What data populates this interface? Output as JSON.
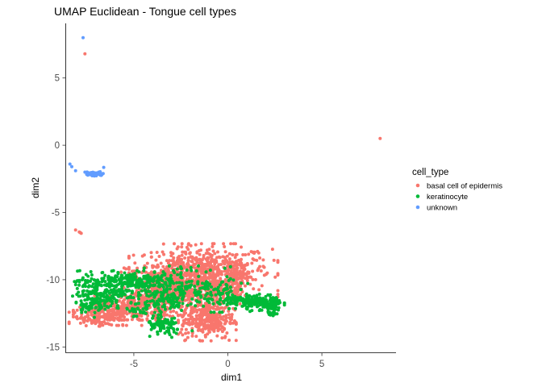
{
  "chart_data": {
    "type": "scatter",
    "title": "UMAP Euclidean  - Tongue cell types",
    "xlabel": "dim1",
    "ylabel": "dim2",
    "xlim": [
      -8.6,
      8.9
    ],
    "ylim": [
      -15.4,
      9.0
    ],
    "x_ticks": [
      -5,
      0,
      5
    ],
    "y_ticks": [
      -15,
      -10,
      -5,
      0,
      5
    ],
    "grid": false,
    "legend": {
      "title": "cell_type",
      "position": "right",
      "entries": [
        "basal cell of epidermis",
        "keratinocyte",
        "unknown"
      ]
    },
    "series": [
      {
        "name": "basal cell of epidermis",
        "color": "#F8766D",
        "outliers": [
          [
            -7.6,
            6.8
          ],
          [
            8.1,
            0.5
          ],
          [
            -8.1,
            -6.3
          ],
          [
            -7.9,
            -6.45
          ],
          [
            -7.8,
            -6.55
          ],
          [
            -7.85,
            -6.5
          ]
        ],
        "clusters": [
          {
            "cx": -1.3,
            "cy": -9.3,
            "sx": 1.8,
            "sy": 0.9,
            "n": 550
          },
          {
            "cx": -2.6,
            "cy": -10.3,
            "sx": 1.4,
            "sy": 0.8,
            "n": 380
          },
          {
            "cx": -4.0,
            "cy": -11.9,
            "sx": 1.2,
            "sy": 0.5,
            "n": 230
          },
          {
            "cx": -5.8,
            "cy": -12.3,
            "sx": 1.1,
            "sy": 0.5,
            "n": 220
          },
          {
            "cx": -6.9,
            "cy": -12.8,
            "sx": 0.7,
            "sy": 0.3,
            "n": 100
          },
          {
            "cx": -1.1,
            "cy": -13.0,
            "sx": 0.7,
            "sy": 0.7,
            "n": 320
          },
          {
            "cx": -0.4,
            "cy": -10.6,
            "sx": 0.6,
            "sy": 0.7,
            "n": 140
          },
          {
            "cx": 0.35,
            "cy": -9.8,
            "sx": 0.4,
            "sy": 0.5,
            "n": 60
          },
          {
            "cx": -3.3,
            "cy": -10.9,
            "sx": 0.9,
            "sy": 0.4,
            "n": 110
          }
        ]
      },
      {
        "name": "keratinocyte",
        "color": "#00BA38",
        "outliers": [
          [
            -1.9,
            -13.8
          ],
          [
            -7.1,
            -12.8
          ],
          [
            -7.2,
            -11.4
          ]
        ],
        "clusters": [
          {
            "cx": -5.3,
            "cy": -10.1,
            "sx": 1.3,
            "sy": 0.35,
            "n": 240
          },
          {
            "cx": -6.5,
            "cy": -11.0,
            "sx": 0.8,
            "sy": 0.45,
            "n": 170
          },
          {
            "cx": -7.3,
            "cy": -11.9,
            "sx": 0.35,
            "sy": 0.25,
            "n": 60
          },
          {
            "cx": 1.8,
            "cy": -11.7,
            "sx": 0.55,
            "sy": 0.3,
            "n": 130
          },
          {
            "cx": 0.8,
            "cy": -11.6,
            "sx": 0.55,
            "sy": 0.25,
            "n": 80
          },
          {
            "cx": 2.45,
            "cy": -12.1,
            "sx": 0.15,
            "sy": 0.35,
            "n": 40
          },
          {
            "cx": -3.4,
            "cy": -13.5,
            "sx": 0.45,
            "sy": 0.4,
            "n": 90
          },
          {
            "cx": -3.2,
            "cy": -11.3,
            "sx": 0.7,
            "sy": 0.4,
            "n": 90
          },
          {
            "cx": -2.5,
            "cy": -10.3,
            "sx": 1.2,
            "sy": 0.6,
            "n": 110
          },
          {
            "cx": -0.7,
            "cy": -11.1,
            "sx": 0.8,
            "sy": 0.6,
            "n": 80
          },
          {
            "cx": -4.6,
            "cy": -12.2,
            "sx": 0.8,
            "sy": 0.3,
            "n": 50
          }
        ]
      },
      {
        "name": "unknown",
        "color": "#619CFF",
        "outliers": [
          [
            -7.7,
            8.0
          ],
          [
            -8.4,
            -1.4
          ],
          [
            -8.3,
            -1.6
          ],
          [
            -6.6,
            -1.65
          ],
          [
            -7.6,
            -2.0
          ],
          [
            -8.1,
            -1.9
          ],
          [
            -7.3,
            -2.1
          ]
        ],
        "clusters": [
          {
            "cx": -7.05,
            "cy": -2.15,
            "sx": 0.25,
            "sy": 0.08,
            "n": 40
          }
        ]
      }
    ]
  }
}
